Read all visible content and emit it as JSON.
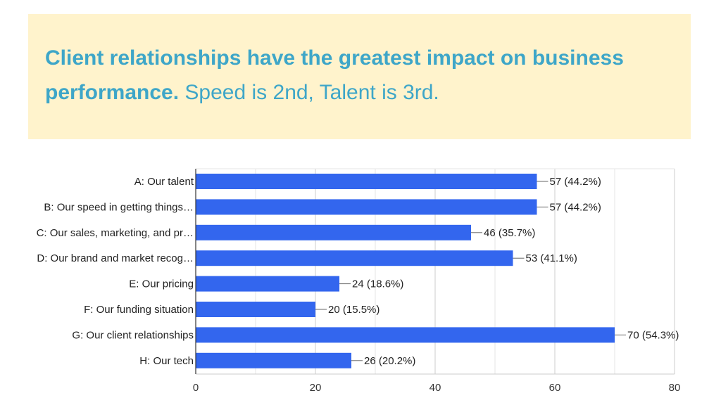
{
  "headline": {
    "bold": "Client relationships have the greatest impact on business performance.",
    "regular": "Speed is 2nd, Talent is 3rd."
  },
  "colors": {
    "banner_bg": "#fff3cc",
    "headline": "#3ea6c8",
    "bar": "#3366ee"
  },
  "chart_data": {
    "type": "bar",
    "orientation": "horizontal",
    "categories": [
      "A: Our talent",
      "B: Our speed in getting things…",
      "C: Our sales, marketing, and pr…",
      "D: Our brand and market recog…",
      "E: Our pricing",
      "F: Our funding situation",
      "G: Our client relationships",
      "H: Our tech"
    ],
    "values": [
      57,
      57,
      46,
      53,
      24,
      20,
      70,
      26
    ],
    "value_labels": [
      "57 (44.2%)",
      "57 (44.2%)",
      "46 (35.7%)",
      "53 (41.1%)",
      "24 (18.6%)",
      "20 (15.5%)",
      "70 (54.3%)",
      "26 (20.2%)"
    ],
    "xlim": [
      0,
      80
    ],
    "xticks": [
      0,
      20,
      40,
      60,
      80
    ],
    "grid": true,
    "legend": "none"
  }
}
